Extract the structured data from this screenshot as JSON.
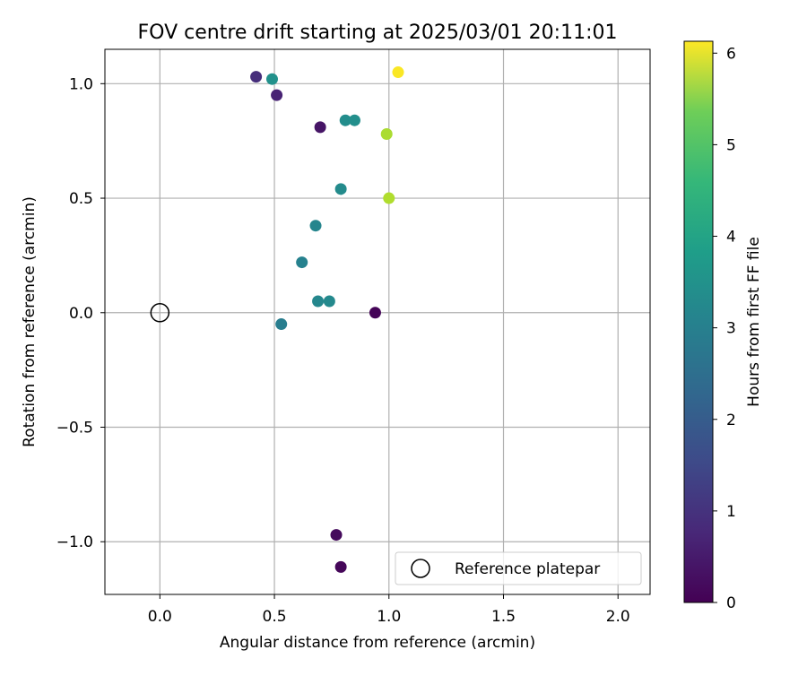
{
  "chart_data": {
    "type": "scatter",
    "title": "FOV centre drift starting at 2025/03/01 20:11:01",
    "xlabel": "Angular distance from reference (arcmin)",
    "ylabel": "Rotation from reference (arcmin)",
    "xlim": [
      -0.24,
      2.14
    ],
    "ylim": [
      -1.23,
      1.15
    ],
    "x_ticks": [
      0.0,
      0.5,
      1.0,
      1.5,
      2.0
    ],
    "x_tick_labels": [
      "0.0",
      "0.5",
      "1.0",
      "1.5",
      "2.0"
    ],
    "y_ticks": [
      -1.0,
      -0.5,
      0.0,
      0.5,
      1.0
    ],
    "y_tick_labels": [
      "−1.0",
      "−0.5",
      "0.0",
      "0.5",
      "1.0"
    ],
    "grid": true,
    "colormap": "viridis",
    "colorbar": {
      "label": "Hours from first FF file",
      "min": 0,
      "max": 6.13,
      "ticks": [
        0,
        1,
        2,
        3,
        4,
        5,
        6
      ],
      "tick_labels": [
        "0",
        "1",
        "2",
        "3",
        "4",
        "5",
        "6"
      ]
    },
    "legend": {
      "position": "lower-right",
      "label": "Reference platepar"
    },
    "reference_point": {
      "x": 0.0,
      "y": 0.0
    },
    "points": [
      {
        "x": 0.94,
        "y": 0.0,
        "hours": 0.05
      },
      {
        "x": 0.79,
        "y": -1.11,
        "hours": 0.1
      },
      {
        "x": 0.77,
        "y": -0.97,
        "hours": 0.15
      },
      {
        "x": 0.7,
        "y": 0.81,
        "hours": 0.35
      },
      {
        "x": 0.51,
        "y": 0.95,
        "hours": 0.6
      },
      {
        "x": 0.42,
        "y": 1.03,
        "hours": 0.8
      },
      {
        "x": 0.53,
        "y": -0.05,
        "hours": 2.6
      },
      {
        "x": 0.62,
        "y": 0.22,
        "hours": 2.7
      },
      {
        "x": 0.68,
        "y": 0.38,
        "hours": 2.8
      },
      {
        "x": 0.69,
        "y": 0.05,
        "hours": 2.85
      },
      {
        "x": 0.74,
        "y": 0.05,
        "hours": 2.9
      },
      {
        "x": 0.79,
        "y": 0.54,
        "hours": 2.95
      },
      {
        "x": 0.81,
        "y": 0.84,
        "hours": 3.0
      },
      {
        "x": 0.85,
        "y": 0.84,
        "hours": 3.05
      },
      {
        "x": 0.49,
        "y": 1.02,
        "hours": 3.1
      },
      {
        "x": 0.99,
        "y": 0.78,
        "hours": 5.35
      },
      {
        "x": 1.0,
        "y": 0.5,
        "hours": 5.4
      },
      {
        "x": 1.04,
        "y": 1.05,
        "hours": 6.1
      }
    ]
  }
}
